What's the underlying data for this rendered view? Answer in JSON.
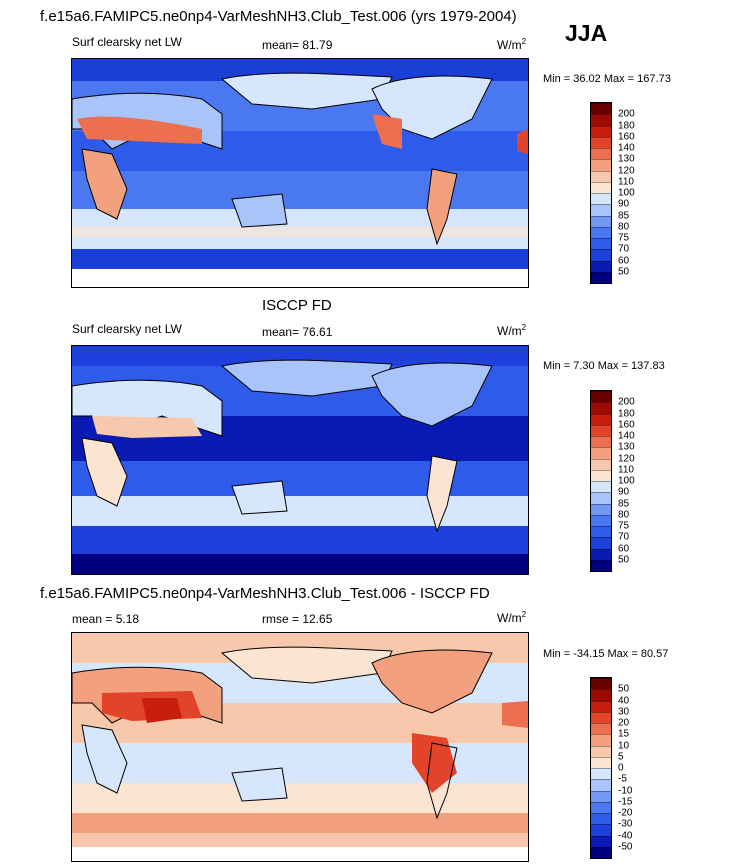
{
  "season": "JJA",
  "panels": [
    {
      "title": "f.e15a6.FAMIPC5.ne0np4-VarMeshNH3.Club_Test.006 (yrs 1979-2004)",
      "left_label": "Surf clearsky net LW",
      "center_label": "mean=  81.79",
      "units": "W/m",
      "units_exp": "2",
      "minmax": "Min =  36.02 Max = 167.73",
      "colorbar": {
        "levels": [
          "50",
          "60",
          "70",
          "75",
          "80",
          "85",
          "90",
          "100",
          "110",
          "120",
          "130",
          "140",
          "160",
          "180",
          "200"
        ],
        "colors": [
          "#000080",
          "#0a1ab4",
          "#1e40dc",
          "#2f5bea",
          "#4a78f0",
          "#7098f4",
          "#a8c4f8",
          "#d6e6fc",
          "#fbe4d2",
          "#f8c8ac",
          "#f3a07e",
          "#ec7050",
          "#e2442a",
          "#c81e10",
          "#9c0a04",
          "#6a0000"
        ]
      }
    },
    {
      "title": "ISCCP FD",
      "left_label": "Surf clearsky net LW",
      "center_label": "mean=  76.61",
      "units": "W/m",
      "units_exp": "2",
      "minmax": "Min =   7.30 Max = 137.83",
      "colorbar": {
        "levels": [
          "50",
          "60",
          "70",
          "75",
          "80",
          "85",
          "90",
          "100",
          "110",
          "120",
          "130",
          "140",
          "160",
          "180",
          "200"
        ],
        "colors": [
          "#000080",
          "#0a1ab4",
          "#1e40dc",
          "#2f5bea",
          "#4a78f0",
          "#7098f4",
          "#a8c4f8",
          "#d6e6fc",
          "#fbe4d2",
          "#f8c8ac",
          "#f3a07e",
          "#ec7050",
          "#e2442a",
          "#c81e10",
          "#9c0a04",
          "#6a0000"
        ]
      }
    },
    {
      "title": "f.e15a6.FAMIPC5.ne0np4-VarMeshNH3.Club_Test.006 - ISCCP FD",
      "left_label": "mean =   5.18",
      "center_label": "rmse =  12.65",
      "units": "W/m",
      "units_exp": "2",
      "minmax": "Min = -34.15 Max =  80.57",
      "colorbar": {
        "levels": [
          "-50",
          "-40",
          "-30",
          "-20",
          "-15",
          "-10",
          "-5",
          "0",
          "5",
          "10",
          "15",
          "20",
          "30",
          "40",
          "50"
        ],
        "colors": [
          "#000080",
          "#0a1ab4",
          "#1e40dc",
          "#2f5bea",
          "#4a78f0",
          "#7098f4",
          "#a8c4f8",
          "#d6e6fc",
          "#fbe4d2",
          "#f8c8ac",
          "#f3a07e",
          "#ec7050",
          "#e2442a",
          "#c81e10",
          "#9c0a04",
          "#6a0000"
        ]
      }
    }
  ],
  "chart_data": [
    {
      "type": "heatmap",
      "title": "f.e15a6.FAMIPC5.ne0np4-VarMeshNH3.Club_Test.006 (yrs 1979-2004)",
      "variable": "Surf clearsky net LW",
      "season": "JJA",
      "units": "W/m2",
      "mean": 81.79,
      "min": 36.02,
      "max": 167.73,
      "contour_levels": [
        50,
        60,
        70,
        75,
        80,
        85,
        90,
        100,
        110,
        120,
        130,
        140,
        160,
        180,
        200
      ]
    },
    {
      "type": "heatmap",
      "title": "ISCCP FD",
      "variable": "Surf clearsky net LW",
      "units": "W/m2",
      "mean": 76.61,
      "min": 7.3,
      "max": 137.83,
      "contour_levels": [
        50,
        60,
        70,
        75,
        80,
        85,
        90,
        100,
        110,
        120,
        130,
        140,
        160,
        180,
        200
      ]
    },
    {
      "type": "heatmap",
      "title": "f.e15a6.FAMIPC5.ne0np4-VarMeshNH3.Club_Test.006 - ISCCP FD",
      "units": "W/m2",
      "mean": 5.18,
      "rmse": 12.65,
      "min": -34.15,
      "max": 80.57,
      "contour_levels": [
        -50,
        -40,
        -30,
        -20,
        -15,
        -10,
        -5,
        0,
        5,
        10,
        15,
        20,
        30,
        40,
        50
      ]
    }
  ]
}
